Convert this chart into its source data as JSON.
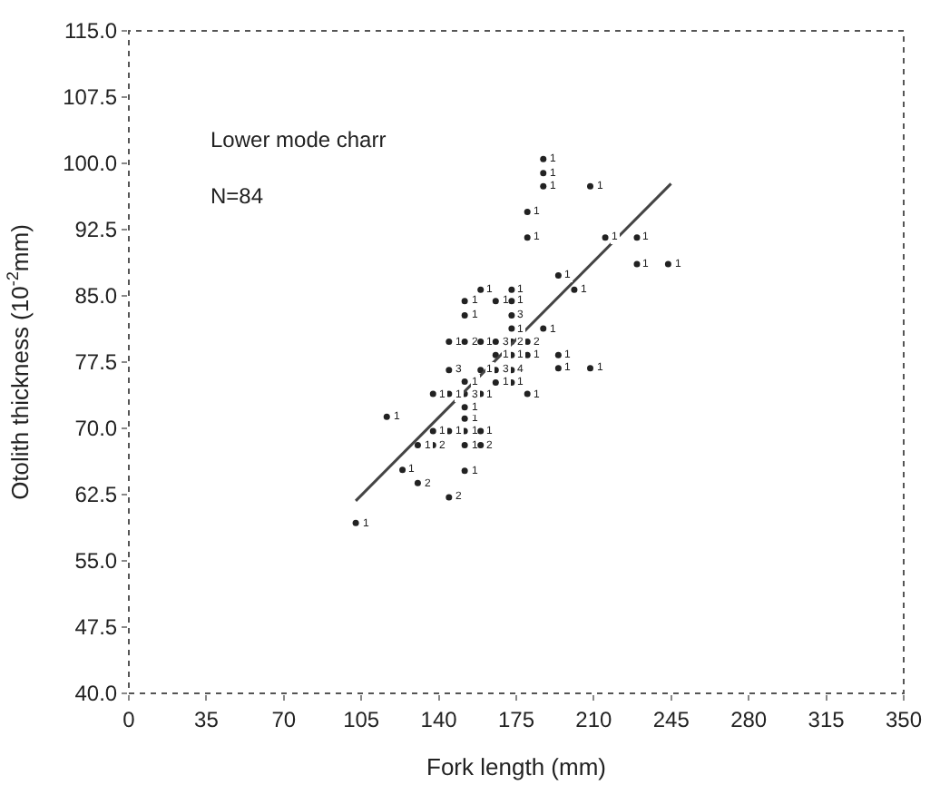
{
  "chart_data": {
    "type": "scatter",
    "xlabel": "Fork length (mm)",
    "ylabel": "Otolith thickness (10$^{-2}$mm)",
    "annotations": [
      "Lower mode charr",
      "N=84",
      {
        "text": "1",
        "x": 102.5,
        "y": 59.3
      },
      {
        "text": "1",
        "x": 116.5,
        "y": 71.3
      },
      {
        "text": "1",
        "x": 123.6,
        "y": 65.3
      },
      {
        "text": "2",
        "x": 130.5,
        "y": 63.8
      },
      {
        "text": "1",
        "x": 130.5,
        "y": 68.1
      },
      {
        "text": "2",
        "x": 137.4,
        "y": 68.1
      },
      {
        "text": "1",
        "x": 137.4,
        "y": 69.7
      },
      {
        "text": "1",
        "x": 137.4,
        "y": 73.9
      },
      {
        "text": "2",
        "x": 144.6,
        "y": 62.2
      },
      {
        "text": "1",
        "x": 144.6,
        "y": 69.7
      },
      {
        "text": "1",
        "x": 144.6,
        "y": 73.9
      },
      {
        "text": "3",
        "x": 144.6,
        "y": 76.6
      },
      {
        "text": "1",
        "x": 144.6,
        "y": 79.8
      },
      {
        "text": "2",
        "x": 151.7,
        "y": 79.8
      },
      {
        "text": "1",
        "x": 151.7,
        "y": 82.8
      },
      {
        "text": "1",
        "x": 151.7,
        "y": 84.4
      },
      {
        "text": "1",
        "x": 151.7,
        "y": 65.2
      },
      {
        "text": "1",
        "x": 151.7,
        "y": 68.1
      },
      {
        "text": "1",
        "x": 151.7,
        "y": 69.7
      },
      {
        "text": "1",
        "x": 151.7,
        "y": 71.1
      },
      {
        "text": "1",
        "x": 151.7,
        "y": 72.4
      },
      {
        "text": "3",
        "x": 151.7,
        "y": 73.9
      },
      {
        "text": "1",
        "x": 151.7,
        "y": 75.3
      },
      {
        "text": "2",
        "x": 158.9,
        "y": 68.1
      },
      {
        "text": "1",
        "x": 158.9,
        "y": 69.7
      },
      {
        "text": "1",
        "x": 158.9,
        "y": 73.9
      },
      {
        "text": "1",
        "x": 158.9,
        "y": 76.6
      },
      {
        "text": "1",
        "x": 158.9,
        "y": 79.8
      },
      {
        "text": "1",
        "x": 158.9,
        "y": 85.7
      },
      {
        "text": "1",
        "x": 165.7,
        "y": 84.4
      },
      {
        "text": "3",
        "x": 165.7,
        "y": 79.8
      },
      {
        "text": "3",
        "x": 165.7,
        "y": 76.6
      },
      {
        "text": "1",
        "x": 165.7,
        "y": 75.2
      },
      {
        "text": "1",
        "x": 165.7,
        "y": 78.3
      },
      {
        "text": "1",
        "x": 172.9,
        "y": 75.2
      },
      {
        "text": "4",
        "x": 172.9,
        "y": 76.6
      },
      {
        "text": "1",
        "x": 172.9,
        "y": 78.3
      },
      {
        "text": "2",
        "x": 172.9,
        "y": 79.8
      },
      {
        "text": "1",
        "x": 172.9,
        "y": 81.3
      },
      {
        "text": "3",
        "x": 172.9,
        "y": 82.8
      },
      {
        "text": "1",
        "x": 172.9,
        "y": 84.4
      },
      {
        "text": "1",
        "x": 172.9,
        "y": 85.7
      },
      {
        "text": "2",
        "x": 180,
        "y": 79.8
      },
      {
        "text": "1",
        "x": 180,
        "y": 78.3
      },
      {
        "text": "1",
        "x": 180,
        "y": 73.9
      },
      {
        "text": "1",
        "x": 180,
        "y": 91.6
      },
      {
        "text": "1",
        "x": 180,
        "y": 94.5
      },
      {
        "text": "1",
        "x": 187.2,
        "y": 81.3
      },
      {
        "text": "1",
        "x": 187.2,
        "y": 97.4
      },
      {
        "text": "1",
        "x": 187.2,
        "y": 98.9
      },
      {
        "text": "1",
        "x": 187.2,
        "y": 100.5
      },
      {
        "text": "1",
        "x": 194,
        "y": 87.3
      },
      {
        "text": "1",
        "x": 194,
        "y": 78.3
      },
      {
        "text": "1",
        "x": 194,
        "y": 76.8
      },
      {
        "text": "1",
        "x": 201.2,
        "y": 85.7
      },
      {
        "text": "1",
        "x": 208.4,
        "y": 97.4
      },
      {
        "text": "1",
        "x": 208.4,
        "y": 76.8
      },
      {
        "text": "1",
        "x": 215.2,
        "y": 91.6
      },
      {
        "text": "1",
        "x": 229.5,
        "y": 91.6
      },
      {
        "text": "1",
        "x": 229.5,
        "y": 88.6
      },
      {
        "text": "1",
        "x": 243.6,
        "y": 88.6
      }
    ],
    "xlim": [
      0,
      350
    ],
    "xticks": [
      0,
      35,
      70,
      105,
      140,
      175,
      210,
      245,
      280,
      315,
      350
    ],
    "ylim": [
      40,
      115
    ],
    "yticks": [
      {
        "value": 40,
        "label": "40.0"
      },
      {
        "value": 47.5,
        "label": "47.5"
      },
      {
        "value": 55,
        "label": "55.0"
      },
      {
        "value": 62.5,
        "label": "62.5"
      },
      {
        "value": 70,
        "label": "70.0"
      },
      {
        "value": 77.5,
        "label": "77.5"
      },
      {
        "value": 85,
        "label": "85.0"
      },
      {
        "value": 92.5,
        "label": "92.5"
      },
      {
        "value": 100,
        "label": "100.0"
      },
      {
        "value": 107.5,
        "label": "107.5"
      },
      {
        "value": 115,
        "label": "115.0"
      }
    ],
    "series": [
      {
        "marker": "circle",
        "color": "#222222",
        "x": [
          102.5,
          116.5,
          123.6,
          130.5,
          130.5,
          137.4,
          137.4,
          137.4,
          144.6,
          144.6,
          144.6,
          144.6,
          144.6,
          151.7,
          151.7,
          151.7,
          151.7,
          151.7,
          151.7,
          151.7,
          151.7,
          151.7,
          151.7,
          158.9,
          158.9,
          158.9,
          158.9,
          158.9,
          158.9,
          165.7,
          165.7,
          165.7,
          165.7,
          165.7,
          172.9,
          172.9,
          172.9,
          172.9,
          172.9,
          172.9,
          172.9,
          172.9,
          180,
          180,
          180,
          180,
          180,
          187.2,
          187.2,
          187.2,
          187.2,
          194,
          194,
          194,
          201.2,
          208.4,
          208.4,
          215.2,
          229.5,
          229.5,
          243.6
        ],
        "values": [
          59.3,
          71.3,
          65.3,
          63.8,
          68.1,
          68.1,
          69.7,
          73.9,
          62.2,
          69.7,
          73.9,
          76.6,
          79.8,
          79.8,
          82.8,
          84.4,
          65.2,
          68.1,
          69.7,
          71.1,
          72.4,
          73.9,
          75.3,
          68.1,
          69.7,
          73.9,
          76.6,
          79.8,
          85.7,
          84.4,
          79.8,
          76.6,
          75.2,
          78.3,
          75.2,
          76.6,
          78.3,
          79.8,
          81.3,
          82.8,
          84.4,
          85.7,
          79.8,
          78.3,
          73.9,
          91.6,
          94.5,
          81.3,
          97.4,
          98.9,
          100.5,
          87.3,
          78.3,
          76.8,
          85.7,
          97.4,
          76.8,
          91.6,
          91.6,
          88.6,
          88.6
        ]
      },
      {
        "type": "line",
        "marker": "none",
        "color": "#444444",
        "x": [
          102.5,
          244.9
        ],
        "values": [
          61.8,
          97.7
        ]
      }
    ]
  }
}
